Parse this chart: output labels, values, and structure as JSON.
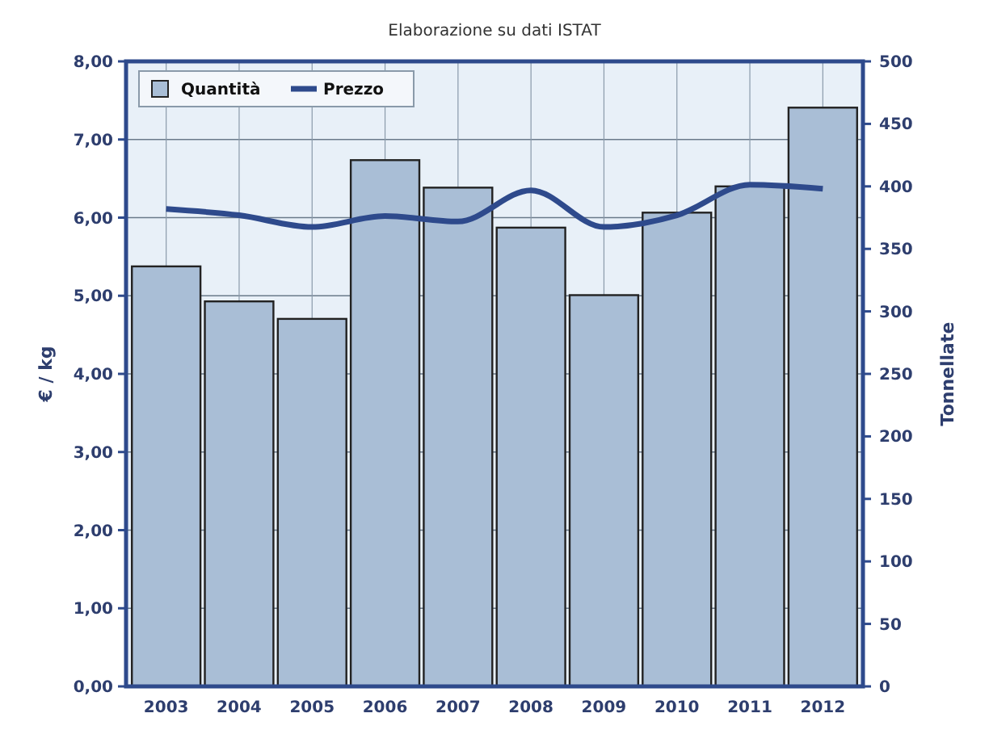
{
  "chart_data": {
    "type": "bar",
    "title": "Elaborazione su dati ISTAT",
    "ylabel": "€ / kg",
    "y2label": "Tonnellate",
    "categories": [
      "2003",
      "2004",
      "2005",
      "2006",
      "2007",
      "2008",
      "2009",
      "2010",
      "2011",
      "2012"
    ],
    "series": [
      {
        "name": "Quantità",
        "type": "bar",
        "axis": "y2",
        "color": "#a9bed6",
        "values": [
          336,
          308,
          294,
          421,
          399,
          367,
          313,
          379,
          400,
          463
        ]
      },
      {
        "name": "Prezzo",
        "type": "line",
        "axis": "y",
        "color": "#2e4a8c",
        "values": [
          6.11,
          6.03,
          5.88,
          6.02,
          5.95,
          6.35,
          5.88,
          6.03,
          6.42,
          6.37
        ]
      }
    ],
    "ylim": [
      0,
      8
    ],
    "yticks": [
      {
        "value": 0,
        "label": "0,00"
      },
      {
        "value": 1,
        "label": "1,00"
      },
      {
        "value": 2,
        "label": "2,00"
      },
      {
        "value": 3,
        "label": "3,00"
      },
      {
        "value": 4,
        "label": "4,00"
      },
      {
        "value": 5,
        "label": "5,00"
      },
      {
        "value": 6,
        "label": "6,00"
      },
      {
        "value": 7,
        "label": "7,00"
      },
      {
        "value": 8,
        "label": "8,00"
      }
    ],
    "y2lim": [
      0,
      500
    ],
    "y2ticks": [
      0,
      50,
      100,
      150,
      200,
      250,
      300,
      350,
      400,
      450,
      500
    ],
    "grid": true,
    "legend": "top left",
    "marker": "none",
    "line_style": "solid"
  }
}
